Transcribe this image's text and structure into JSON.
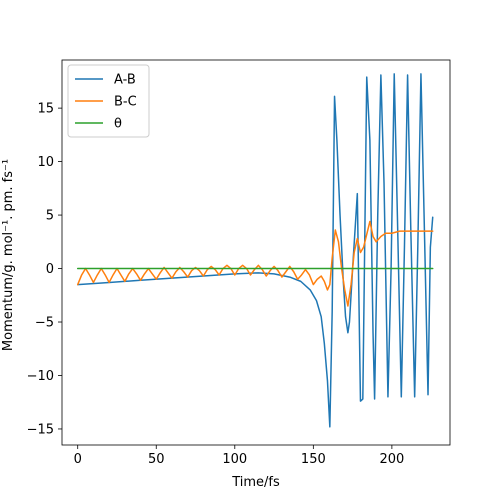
{
  "chart_data": {
    "type": "line",
    "xlabel": "Time/fs",
    "ylabel": "Momentum/g. mol⁻¹. pm. fs⁻¹",
    "xlim": [
      -10,
      237
    ],
    "ylim": [
      -16.5,
      19.5
    ],
    "xticks": [
      0,
      50,
      100,
      150,
      200
    ],
    "yticks": [
      -15,
      -10,
      -5,
      0,
      5,
      10,
      15
    ],
    "grid": false,
    "legend_position": "top-left",
    "series": [
      {
        "name": "A-B",
        "color": "#1f77b4",
        "points": [
          [
            0,
            -1.5
          ],
          [
            20,
            -1.3
          ],
          [
            40,
            -1.1
          ],
          [
            60,
            -0.9
          ],
          [
            80,
            -0.7
          ],
          [
            100,
            -0.5
          ],
          [
            115,
            -0.4
          ],
          [
            125,
            -0.5
          ],
          [
            135,
            -0.8
          ],
          [
            142,
            -1.2
          ],
          [
            148,
            -2.0
          ],
          [
            152,
            -3.0
          ],
          [
            155,
            -4.5
          ],
          [
            157,
            -7.0
          ],
          [
            159,
            -10.5
          ],
          [
            160.5,
            -14.8
          ],
          [
            162,
            -4.0
          ],
          [
            163.5,
            16.1
          ],
          [
            165,
            12.0
          ],
          [
            167,
            5.0
          ],
          [
            169,
            -1.0
          ],
          [
            170.5,
            -4.5
          ],
          [
            172,
            -6.0
          ],
          [
            173,
            -5.0
          ],
          [
            175,
            0.0
          ],
          [
            178,
            7.0
          ],
          [
            180,
            -12.4
          ],
          [
            181.5,
            -12.2
          ],
          [
            184,
            17.9
          ],
          [
            186,
            12.0
          ],
          [
            188,
            -6.0
          ],
          [
            189,
            -12.2
          ],
          [
            191,
            5.0
          ],
          [
            193,
            18.1
          ],
          [
            195,
            8.0
          ],
          [
            197.5,
            -12.0
          ],
          [
            199.5,
            0.0
          ],
          [
            201.5,
            18.2
          ],
          [
            203.5,
            5.0
          ],
          [
            206,
            -12.0
          ],
          [
            208,
            2.0
          ],
          [
            210,
            18.1
          ],
          [
            212,
            4.0
          ],
          [
            214.5,
            -12.0
          ],
          [
            216.5,
            2.0
          ],
          [
            218.5,
            18.2
          ],
          [
            220.5,
            5.0
          ],
          [
            223,
            -11.8
          ],
          [
            224.5,
            2.0
          ],
          [
            226,
            4.8
          ]
        ]
      },
      {
        "name": "B-C",
        "color": "#ff7f0e",
        "points": [
          [
            0,
            -1.5
          ],
          [
            2.5,
            -0.6
          ],
          [
            5,
            0.0
          ],
          [
            7.5,
            -0.6
          ],
          [
            10,
            -1.3
          ],
          [
            12.5,
            -0.6
          ],
          [
            15,
            0.0
          ],
          [
            17.5,
            -0.6
          ],
          [
            20,
            -1.3
          ],
          [
            22.5,
            -0.6
          ],
          [
            25,
            0.0
          ],
          [
            27.5,
            -0.6
          ],
          [
            30,
            -1.2
          ],
          [
            32.5,
            -0.5
          ],
          [
            35,
            0.0
          ],
          [
            37.5,
            -0.5
          ],
          [
            40,
            -1.1
          ],
          [
            42.5,
            -0.5
          ],
          [
            45,
            0.0
          ],
          [
            47.5,
            -0.5
          ],
          [
            50,
            -1.0
          ],
          [
            52.5,
            -0.4
          ],
          [
            55,
            0.1
          ],
          [
            57.5,
            -0.4
          ],
          [
            60,
            -0.9
          ],
          [
            62.5,
            -0.3
          ],
          [
            65,
            0.1
          ],
          [
            67.5,
            -0.3
          ],
          [
            70,
            -0.8
          ],
          [
            72.5,
            -0.2
          ],
          [
            75,
            0.1
          ],
          [
            77.5,
            -0.2
          ],
          [
            80,
            -0.7
          ],
          [
            82.5,
            -0.1
          ],
          [
            85,
            0.2
          ],
          [
            87.5,
            -0.1
          ],
          [
            90,
            -0.6
          ],
          [
            92.5,
            0.0
          ],
          [
            95,
            0.3
          ],
          [
            97.5,
            0.0
          ],
          [
            100,
            -0.6
          ],
          [
            102.5,
            0.0
          ],
          [
            105,
            0.3
          ],
          [
            107.5,
            0.0
          ],
          [
            110,
            -0.6
          ],
          [
            112.5,
            -0.1
          ],
          [
            115,
            0.3
          ],
          [
            117.5,
            -0.1
          ],
          [
            120,
            -0.7
          ],
          [
            122.5,
            -0.2
          ],
          [
            125,
            0.2
          ],
          [
            127.5,
            -0.2
          ],
          [
            130,
            -0.8
          ],
          [
            132.5,
            -0.3
          ],
          [
            135,
            0.2
          ],
          [
            137.5,
            -0.3
          ],
          [
            140,
            -1.0
          ],
          [
            142.5,
            -0.6
          ],
          [
            145,
            -0.1
          ],
          [
            147.5,
            -0.6
          ],
          [
            150,
            -1.5
          ],
          [
            152.5,
            -1.0
          ],
          [
            155,
            -0.7
          ],
          [
            157,
            -1.2
          ],
          [
            159,
            -2.0
          ],
          [
            160.5,
            -1.5
          ],
          [
            162,
            1.0
          ],
          [
            164,
            3.6
          ],
          [
            166,
            2.5
          ],
          [
            168,
            0.0
          ],
          [
            170,
            -2.0
          ],
          [
            172,
            -3.5
          ],
          [
            174,
            -1.5
          ],
          [
            176,
            1.5
          ],
          [
            178,
            2.8
          ],
          [
            180,
            1.5
          ],
          [
            182,
            2.0
          ],
          [
            184,
            3.2
          ],
          [
            186,
            4.4
          ],
          [
            188,
            3.0
          ],
          [
            190,
            2.5
          ],
          [
            193,
            3.0
          ],
          [
            196,
            3.3
          ],
          [
            200,
            3.3
          ],
          [
            205,
            3.5
          ],
          [
            210,
            3.5
          ],
          [
            215,
            3.5
          ],
          [
            220,
            3.5
          ],
          [
            226,
            3.5
          ]
        ]
      },
      {
        "name": "θ",
        "color": "#2ca02c",
        "points": [
          [
            0,
            0
          ],
          [
            226,
            0
          ]
        ]
      }
    ]
  }
}
